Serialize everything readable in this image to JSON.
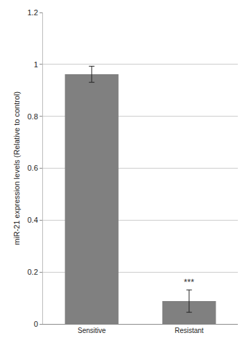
{
  "chart_data": {
    "type": "bar",
    "y_label": "miR-21 expression levels (Relative to control)",
    "categories": [
      "Sensitive",
      "Resistant"
    ],
    "values": [
      0.962,
      0.088
    ],
    "errors": [
      0.031,
      0.043
    ],
    "color": "#808080",
    "ylim": [
      0,
      1.2
    ],
    "yticks": [
      0,
      0.2,
      0.4,
      0.6,
      0.8,
      1,
      1.2
    ],
    "grid": true,
    "annotations": [
      {
        "text": "***",
        "category": "Resistant"
      }
    ]
  }
}
